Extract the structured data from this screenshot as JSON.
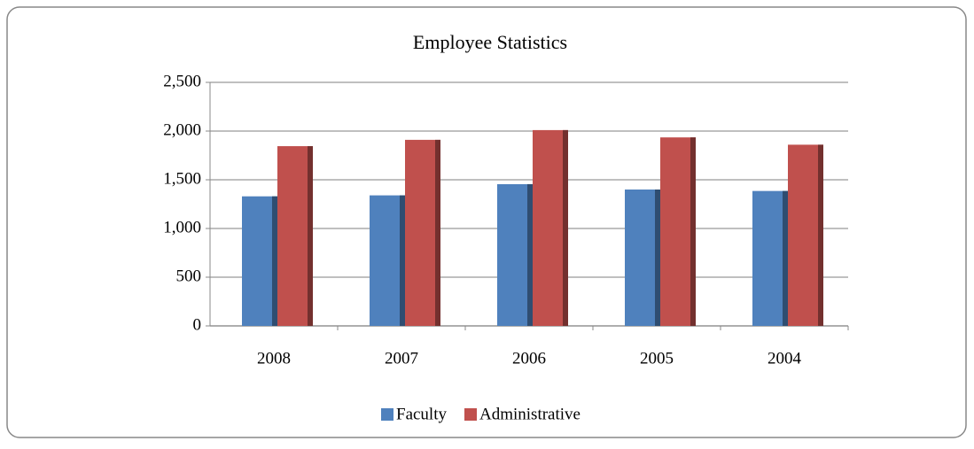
{
  "chart_data": {
    "type": "bar",
    "title": "Employee Statistics",
    "categories": [
      "2008",
      "2007",
      "2006",
      "2005",
      "2004"
    ],
    "series": [
      {
        "name": "Faculty",
        "color": "#4f81bd",
        "values": [
          1330,
          1340,
          1455,
          1400,
          1385
        ]
      },
      {
        "name": "Administrative",
        "color": "#c0504d",
        "values": [
          1845,
          1910,
          2010,
          1935,
          1860
        ]
      }
    ],
    "ylim": [
      0,
      2500
    ],
    "yticks": [
      0,
      500,
      {
        "value": 1000,
        "label": "1,000"
      },
      {
        "value": 1500,
        "label": "1,500"
      },
      {
        "value": 2000,
        "label": "2,000"
      },
      {
        "value": 2500,
        "label": "2,500"
      }
    ],
    "grid": true,
    "legend": "bottom"
  }
}
